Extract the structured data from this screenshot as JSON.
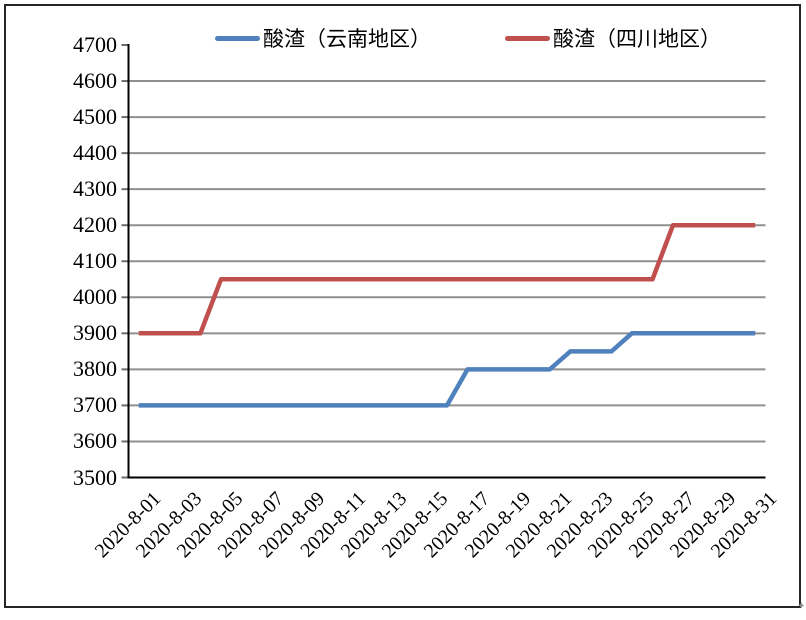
{
  "chart_data": {
    "type": "line",
    "title": "",
    "xlabel": "",
    "ylabel": "",
    "ylim": [
      3500,
      4700
    ],
    "y_tick_step": 100,
    "y_ticks": [
      3500,
      3600,
      3700,
      3800,
      3900,
      4000,
      4100,
      4200,
      4300,
      4400,
      4500,
      4600,
      4700
    ],
    "n_points": 31,
    "x_tick_interval": 2,
    "x_tick_labels": [
      "2020-8-01",
      "2020-8-03",
      "2020-8-05",
      "2020-8-07",
      "2020-8-09",
      "2020-8-11",
      "2020-8-13",
      "2020-8-15",
      "2020-8-17",
      "2020-8-19",
      "2020-8-21",
      "2020-8-23",
      "2020-8-25",
      "2020-8-27",
      "2020-8-29",
      "2020-8-31"
    ],
    "grid": "horizontal",
    "legend_position": "top",
    "series": [
      {
        "name": "酸渣（云南地区）",
        "color": "#4F81BD",
        "values": [
          3700,
          3700,
          3700,
          3700,
          3700,
          3700,
          3700,
          3700,
          3700,
          3700,
          3700,
          3700,
          3700,
          3700,
          3700,
          3700,
          3800,
          3800,
          3800,
          3800,
          3800,
          3850,
          3850,
          3850,
          3900,
          3900,
          3900,
          3900,
          3900,
          3900,
          3900
        ]
      },
      {
        "name": "酸渣（四川地区）",
        "color": "#C0504D",
        "values": [
          3900,
          3900,
          3900,
          3900,
          4050,
          4050,
          4050,
          4050,
          4050,
          4050,
          4050,
          4050,
          4050,
          4050,
          4050,
          4050,
          4050,
          4050,
          4050,
          4050,
          4050,
          4050,
          4050,
          4050,
          4050,
          4050,
          4200,
          4200,
          4200,
          4200,
          4200
        ]
      }
    ]
  },
  "colors": {
    "gridline": "#8F8F8F",
    "tick": "#6b6b6b",
    "axis": "#000000",
    "frame_border": "#262626"
  },
  "artifacts": {
    "corner_mark": "✦"
  }
}
